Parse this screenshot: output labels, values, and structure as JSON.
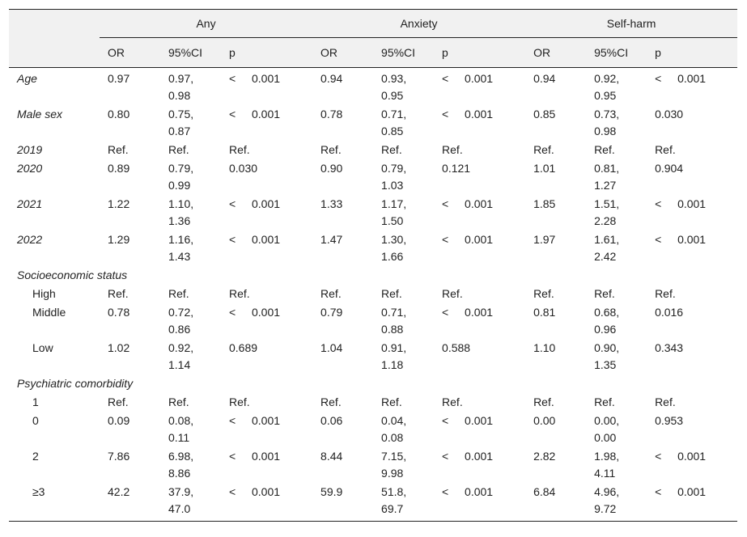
{
  "groups": [
    "Any",
    "Anxiety",
    "Self-harm"
  ],
  "subheaders": [
    "OR",
    "95%CI",
    "p"
  ],
  "rows": [
    {
      "label": "Age",
      "kind": "var",
      "cells": [
        "0.97",
        "0.97,\n0.98",
        "<|0.001",
        "0.94",
        "0.93,\n0.95",
        "<|0.001",
        "0.94",
        "0.92,\n0.95",
        "<|0.001"
      ]
    },
    {
      "label": "Male sex",
      "kind": "var",
      "cells": [
        "0.80",
        "0.75,\n0.87",
        "<|0.001",
        "0.78",
        "0.71,\n0.85",
        "<|0.001",
        "0.85",
        "0.73,\n0.98",
        "0.030"
      ]
    },
    {
      "label": "2019",
      "kind": "var",
      "cells": [
        "Ref.",
        "Ref.",
        "Ref.",
        "Ref.",
        "Ref.",
        "Ref.",
        "Ref.",
        "Ref.",
        "Ref."
      ]
    },
    {
      "label": "2020",
      "kind": "var",
      "cells": [
        "0.89",
        "0.79,\n0.99",
        "0.030",
        "0.90",
        "0.79,\n1.03",
        "0.121",
        "1.01",
        "0.81,\n1.27",
        "0.904"
      ]
    },
    {
      "label": "2021",
      "kind": "var",
      "cells": [
        "1.22",
        "1.10,\n1.36",
        "<|0.001",
        "1.33",
        "1.17,\n1.50",
        "<|0.001",
        "1.85",
        "1.51,\n2.28",
        "<|0.001"
      ]
    },
    {
      "label": "2022",
      "kind": "var",
      "cells": [
        "1.29",
        "1.16,\n1.43",
        "<|0.001",
        "1.47",
        "1.30,\n1.66",
        "<|0.001",
        "1.97",
        "1.61,\n2.42",
        "<|0.001"
      ]
    },
    {
      "label": "Socioeconomic status",
      "kind": "group",
      "cells": []
    },
    {
      "label": "High",
      "kind": "sub",
      "cells": [
        "Ref.",
        "Ref.",
        "Ref.",
        "Ref.",
        "Ref.",
        "Ref.",
        "Ref.",
        "Ref.",
        "Ref."
      ]
    },
    {
      "label": "Middle",
      "kind": "sub",
      "cells": [
        "0.78",
        "0.72,\n0.86",
        "<|0.001",
        "0.79",
        "0.71,\n0.88",
        "<|0.001",
        "0.81",
        "0.68,\n0.96",
        "0.016"
      ]
    },
    {
      "label": "Low",
      "kind": "sub",
      "cells": [
        "1.02",
        "0.92,\n1.14",
        "0.689",
        "1.04",
        "0.91,\n1.18",
        "0.588",
        "1.10",
        "0.90,\n1.35",
        "0.343"
      ]
    },
    {
      "label": "Psychiatric comorbidity",
      "kind": "group",
      "cells": []
    },
    {
      "label": "1",
      "kind": "sub",
      "cells": [
        "Ref.",
        "Ref.",
        "Ref.",
        "Ref.",
        "Ref.",
        "Ref.",
        "Ref.",
        "Ref.",
        "Ref."
      ]
    },
    {
      "label": "0",
      "kind": "sub",
      "cells": [
        "0.09",
        "0.08,\n0.11",
        "<|0.001",
        "0.06",
        "0.04,\n0.08",
        "<|0.001",
        "0.00",
        "0.00,\n0.00",
        "0.953"
      ]
    },
    {
      "label": "2",
      "kind": "sub",
      "cells": [
        "7.86",
        "6.98,\n8.86",
        "<|0.001",
        "8.44",
        "7.15,\n9.98",
        "<|0.001",
        "2.82",
        "1.98,\n4.11",
        "<|0.001"
      ]
    },
    {
      "label": "≥3",
      "kind": "sub",
      "cells": [
        "42.2",
        "37.9,\n47.0",
        "<|0.001",
        "59.9",
        "51.8,\n69.7",
        "<|0.001",
        "6.84",
        "4.96,\n9.72",
        "<|0.001"
      ]
    }
  ]
}
